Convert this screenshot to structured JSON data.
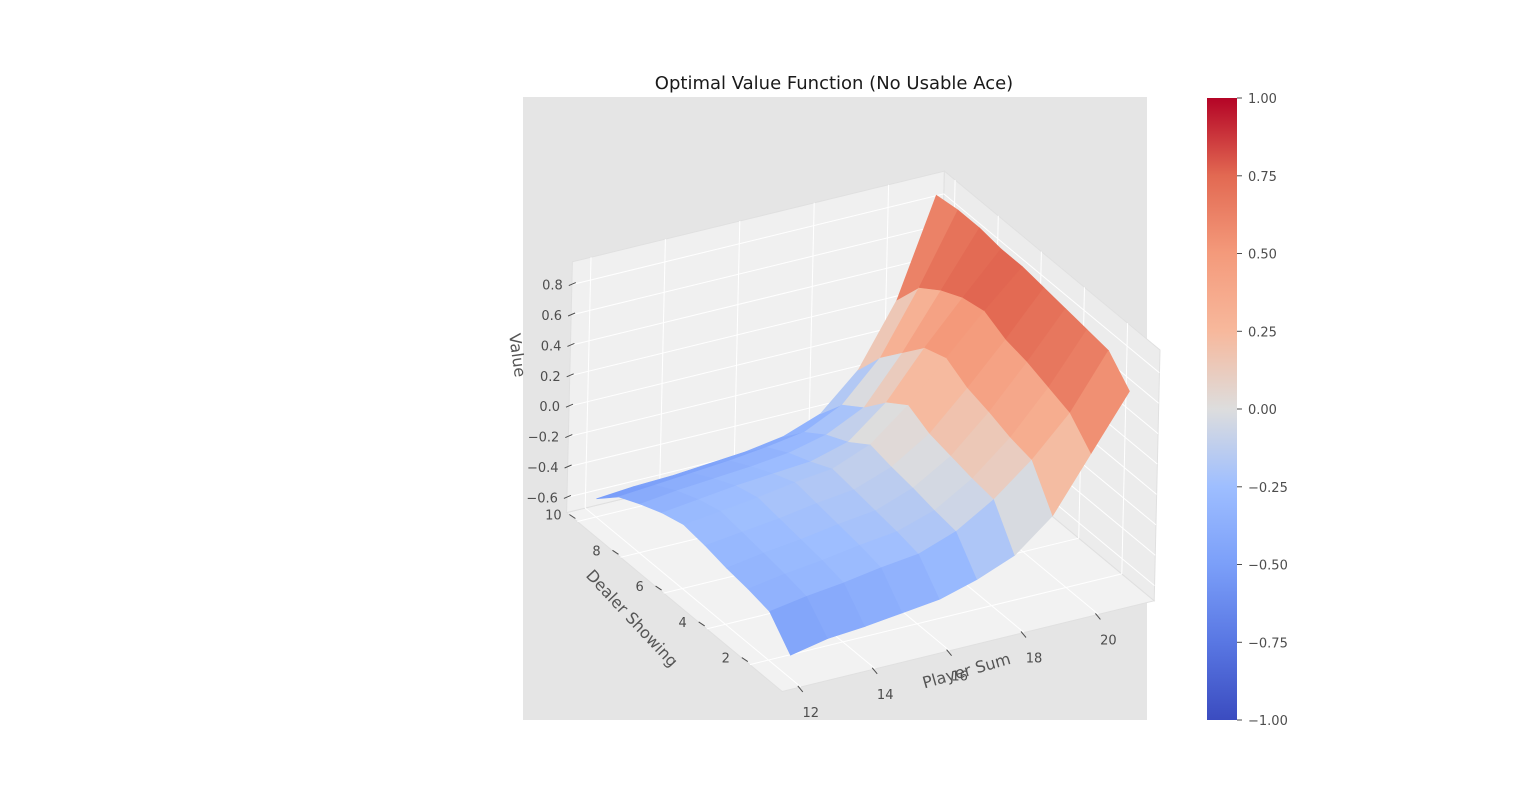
{
  "chart_data": {
    "type": "surface",
    "title": "Optimal Value Function (No Usable Ace)",
    "xlabel": "Player Sum",
    "ylabel": "Dealer Showing",
    "zlabel": "Value",
    "colormap": "coolwarm",
    "x": [
      12,
      13,
      14,
      15,
      16,
      17,
      18,
      19,
      20,
      21
    ],
    "y": [
      1,
      2,
      3,
      4,
      5,
      6,
      7,
      8,
      9,
      10
    ],
    "z": [
      [
        -0.55,
        -0.5,
        -0.48,
        -0.45,
        -0.42,
        -0.35,
        -0.25,
        -0.05,
        0.3,
        0.65
      ],
      [
        -0.38,
        -0.34,
        -0.31,
        -0.27,
        -0.24,
        -0.15,
        0.0,
        0.2,
        0.45,
        0.8
      ],
      [
        -0.35,
        -0.31,
        -0.28,
        -0.24,
        -0.21,
        -0.13,
        0.02,
        0.23,
        0.5,
        0.82
      ],
      [
        -0.33,
        -0.29,
        -0.26,
        -0.22,
        -0.19,
        -0.1,
        0.05,
        0.28,
        0.55,
        0.84
      ],
      [
        -0.3,
        -0.27,
        -0.24,
        -0.2,
        -0.17,
        -0.08,
        0.08,
        0.32,
        0.58,
        0.86
      ],
      [
        -0.28,
        -0.25,
        -0.22,
        -0.18,
        -0.15,
        -0.05,
        0.15,
        0.4,
        0.65,
        0.88
      ],
      [
        -0.32,
        -0.29,
        -0.26,
        -0.24,
        -0.22,
        -0.15,
        0.05,
        0.35,
        0.62,
        0.88
      ],
      [
        -0.38,
        -0.35,
        -0.33,
        -0.31,
        -0.28,
        -0.22,
        -0.1,
        0.2,
        0.55,
        0.9
      ],
      [
        -0.45,
        -0.43,
        -0.41,
        -0.39,
        -0.36,
        -0.32,
        -0.2,
        0.05,
        0.45,
        0.9
      ],
      [
        -0.58,
        -0.56,
        -0.55,
        -0.53,
        -0.51,
        -0.47,
        -0.38,
        -0.15,
        0.25,
        0.88
      ]
    ],
    "xticks": [
      12,
      14,
      16,
      18,
      20
    ],
    "yticks": [
      2,
      4,
      6,
      8,
      10
    ],
    "zticks": [
      -0.6,
      -0.4,
      -0.2,
      0.0,
      0.2,
      0.4,
      0.6,
      0.8
    ],
    "zticklabels": [
      "−0.6",
      "−0.4",
      "−0.2",
      "0.0",
      "0.2",
      "0.4",
      "0.6",
      "0.8"
    ],
    "colorbar": {
      "vmin": -1.0,
      "vmax": 1.0,
      "ticks": [
        1.0,
        0.75,
        0.5,
        0.25,
        0.0,
        -0.25,
        -0.5,
        -0.75,
        -1.0
      ],
      "ticklabels": [
        "1.00",
        "0.75",
        "0.50",
        "0.25",
        "0.00",
        "−0.25",
        "−0.50",
        "−0.75",
        "−1.00"
      ]
    },
    "grid": true
  }
}
